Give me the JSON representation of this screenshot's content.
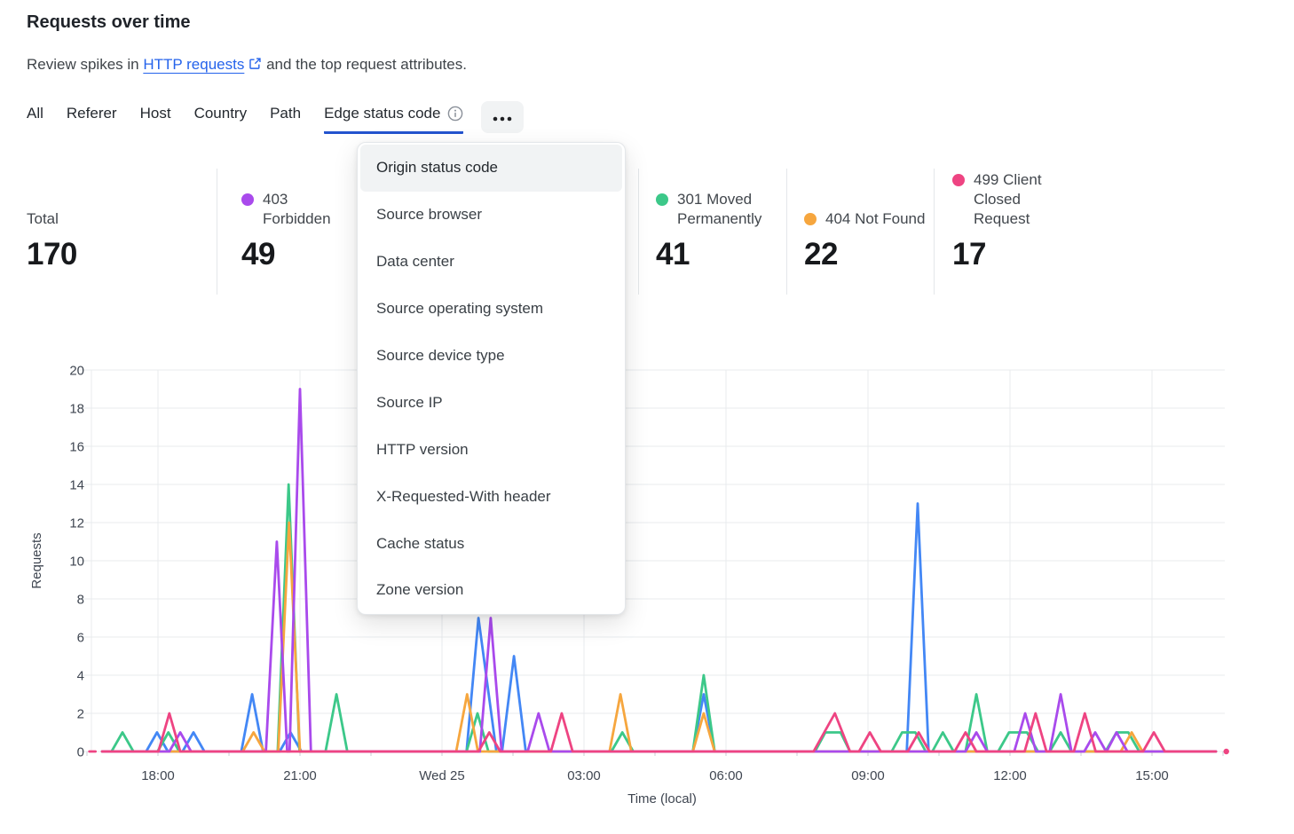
{
  "header": {
    "title": "Requests over time",
    "subtitle_prefix": "Review spikes in ",
    "link_text": "HTTP requests",
    "subtitle_suffix": " and the top request attributes."
  },
  "tabs": {
    "items": [
      "All",
      "Referer",
      "Host",
      "Country",
      "Path",
      "Edge status code"
    ],
    "active": "Edge status code"
  },
  "dropdown": {
    "highlighted": "Origin status code",
    "items": [
      "Origin status code",
      "Source browser",
      "Data center",
      "Source operating system",
      "Source device type",
      "Source IP",
      "HTTP version",
      "X-Requested-With header",
      "Cache status",
      "Zone version"
    ]
  },
  "stats": [
    {
      "label": "Total",
      "value": "170",
      "color": null
    },
    {
      "label": "403 Forbidden",
      "value": "49",
      "color": "#A94AEC"
    },
    {
      "label": "301 Moved Permanently",
      "value": "41",
      "color": "#3CC889"
    },
    {
      "label": "404 Not Found",
      "value": "22",
      "color": "#F6A63E"
    },
    {
      "label": "499 Client Closed Request",
      "value": "17",
      "color": "#EE4482"
    }
  ],
  "colors": {
    "link_blue": "#2563EB",
    "tab_underline": "#2353CE",
    "grid": "#E8EBEE",
    "axis_text": "#3F4651",
    "tick": "#C9CED6"
  },
  "chart_data": {
    "type": "line",
    "title": "Requests over time",
    "xlabel": "Time (local)",
    "ylabel": "Requests",
    "ylim": [
      0,
      20
    ],
    "ytick_step": 2,
    "grid": true,
    "legend_position": "top (stats row)",
    "x_unit": "hours relative to Wed 25 00:00 (negative = Tue)",
    "xlim": [
      -7.6,
      16.8
    ],
    "xticks": [
      {
        "t": -6,
        "label": "18:00"
      },
      {
        "t": -3,
        "label": "21:00"
      },
      {
        "t": 0,
        "label": "Wed 25"
      },
      {
        "t": 3,
        "label": "03:00"
      },
      {
        "t": 6,
        "label": "06:00"
      },
      {
        "t": 9,
        "label": "09:00"
      },
      {
        "t": 12,
        "label": "12:00"
      },
      {
        "t": 15,
        "label": "15:00"
      }
    ],
    "series": [
      {
        "name": "blue-series-legend-hidden",
        "color": "#4387F5",
        "paths": [
          [
            [
              -7.18,
              0
            ],
            [
              -6.25,
              0
            ],
            [
              -6.02,
              1
            ],
            [
              -5.79,
              0
            ],
            [
              -5.48,
              0
            ],
            [
              -5.25,
              1
            ],
            [
              -5.02,
              0
            ],
            [
              -4.24,
              0
            ],
            [
              -4.01,
              3
            ],
            [
              -3.78,
              0
            ],
            [
              -3.43,
              0
            ],
            [
              -3.2,
              1
            ],
            [
              -2.97,
              0
            ],
            [
              0.52,
              0
            ],
            [
              0.77,
              7
            ],
            [
              1.15,
              0
            ],
            [
              1.27,
              0
            ],
            [
              1.52,
              5
            ],
            [
              1.77,
              0
            ],
            [
              5.3,
              0
            ],
            [
              5.53,
              3
            ],
            [
              5.76,
              0
            ],
            [
              9.82,
              0
            ],
            [
              10.05,
              13
            ],
            [
              10.28,
              0
            ],
            [
              16.35,
              0
            ]
          ]
        ]
      },
      {
        "name": "301 Moved Permanently",
        "color": "#3CC889",
        "paths": [
          [
            [
              -7.18,
              0
            ],
            [
              -6.98,
              0
            ],
            [
              -6.75,
              1
            ],
            [
              -6.52,
              0
            ],
            [
              -6.01,
              0
            ],
            [
              -5.78,
              1
            ],
            [
              -5.55,
              0
            ],
            [
              -3.47,
              0
            ],
            [
              -3.24,
              14
            ],
            [
              -3.01,
              0
            ],
            [
              -2.46,
              0
            ],
            [
              -2.23,
              3
            ],
            [
              -2.0,
              0
            ],
            [
              0.52,
              0
            ],
            [
              0.75,
              2
            ],
            [
              0.98,
              0
            ],
            [
              3.58,
              0
            ],
            [
              3.81,
              1
            ],
            [
              4.04,
              0
            ],
            [
              5.3,
              0
            ],
            [
              5.53,
              4
            ],
            [
              5.76,
              0
            ],
            [
              7.88,
              0
            ],
            [
              8.1,
              1
            ],
            [
              8.42,
              1
            ],
            [
              8.62,
              0
            ],
            [
              9.5,
              0
            ],
            [
              9.72,
              1
            ],
            [
              10.0,
              1
            ],
            [
              10.22,
              0
            ],
            [
              10.36,
              0
            ],
            [
              10.58,
              1
            ],
            [
              10.81,
              0
            ],
            [
              11.06,
              0
            ],
            [
              11.29,
              3
            ],
            [
              11.52,
              0
            ],
            [
              11.75,
              0
            ],
            [
              11.98,
              1
            ],
            [
              12.36,
              1
            ],
            [
              12.59,
              0
            ],
            [
              12.84,
              0
            ],
            [
              13.07,
              1
            ],
            [
              13.3,
              0
            ],
            [
              14.02,
              0
            ],
            [
              14.25,
              1
            ],
            [
              14.5,
              1
            ],
            [
              14.73,
              0
            ],
            [
              16.35,
              0
            ]
          ]
        ]
      },
      {
        "name": "404 Not Found",
        "color": "#F6A63E",
        "paths": [
          [
            [
              -7.18,
              0
            ],
            [
              -4.21,
              0
            ],
            [
              -3.98,
              1
            ],
            [
              -3.75,
              0
            ],
            [
              -3.46,
              0
            ],
            [
              -3.23,
              12
            ],
            [
              -3.0,
              0
            ],
            [
              0.3,
              0
            ],
            [
              0.53,
              3
            ],
            [
              0.76,
              0
            ],
            [
              3.54,
              0
            ],
            [
              3.77,
              3
            ],
            [
              4.0,
              0
            ],
            [
              5.3,
              0
            ],
            [
              5.53,
              2
            ],
            [
              5.76,
              0
            ],
            [
              14.34,
              0
            ],
            [
              14.57,
              1
            ],
            [
              14.8,
              0
            ],
            [
              16.35,
              0
            ]
          ]
        ]
      },
      {
        "name": "403 Forbidden",
        "color": "#A94AEC",
        "paths": [
          [
            [
              -7.18,
              0
            ],
            [
              -5.76,
              0
            ],
            [
              -5.53,
              1
            ],
            [
              -5.3,
              0
            ],
            [
              -3.72,
              0
            ],
            [
              -3.49,
              11
            ],
            [
              -3.27,
              0
            ],
            [
              -3.22,
              0
            ],
            [
              -3.0,
              19
            ],
            [
              -2.77,
              0
            ],
            [
              0.8,
              0
            ],
            [
              1.03,
              7
            ],
            [
              1.26,
              0
            ],
            [
              1.81,
              0
            ],
            [
              2.04,
              2
            ],
            [
              2.27,
              0
            ],
            [
              11.06,
              0
            ],
            [
              11.29,
              1
            ],
            [
              11.52,
              0
            ],
            [
              12.09,
              0
            ],
            [
              12.32,
              2
            ],
            [
              12.55,
              0
            ],
            [
              12.84,
              0
            ],
            [
              13.07,
              3
            ],
            [
              13.3,
              0
            ],
            [
              13.57,
              0
            ],
            [
              13.8,
              1
            ],
            [
              14.03,
              0
            ],
            [
              14.04,
              0
            ],
            [
              14.25,
              1
            ],
            [
              14.48,
              0
            ],
            [
              16.35,
              0
            ]
          ]
        ]
      },
      {
        "name": "499 Client Closed Request",
        "color": "#EE4482",
        "paths": [
          [
            [
              -7.45,
              0
            ],
            [
              -7.32,
              0
            ]
          ],
          [
            [
              -7.18,
              0
            ],
            [
              -5.99,
              0
            ],
            [
              -5.76,
              2
            ],
            [
              -5.53,
              0
            ],
            [
              0.77,
              0
            ],
            [
              1.0,
              1
            ],
            [
              1.23,
              0
            ],
            [
              2.3,
              0
            ],
            [
              2.53,
              2
            ],
            [
              2.76,
              0
            ],
            [
              7.85,
              0
            ],
            [
              8.3,
              2
            ],
            [
              8.62,
              0
            ],
            [
              8.81,
              0
            ],
            [
              9.04,
              1
            ],
            [
              9.27,
              0
            ],
            [
              9.84,
              0
            ],
            [
              10.07,
              1
            ],
            [
              10.3,
              0
            ],
            [
              10.83,
              0
            ],
            [
              11.06,
              1
            ],
            [
              11.29,
              0
            ],
            [
              12.31,
              0
            ],
            [
              12.54,
              2
            ],
            [
              12.77,
              0
            ],
            [
              13.35,
              0
            ],
            [
              13.58,
              2
            ],
            [
              13.81,
              0
            ],
            [
              14.81,
              0
            ],
            [
              15.04,
              1
            ],
            [
              15.27,
              0
            ],
            [
              16.35,
              0
            ]
          ],
          [
            [
              16.57,
              0
            ]
          ]
        ]
      }
    ]
  }
}
